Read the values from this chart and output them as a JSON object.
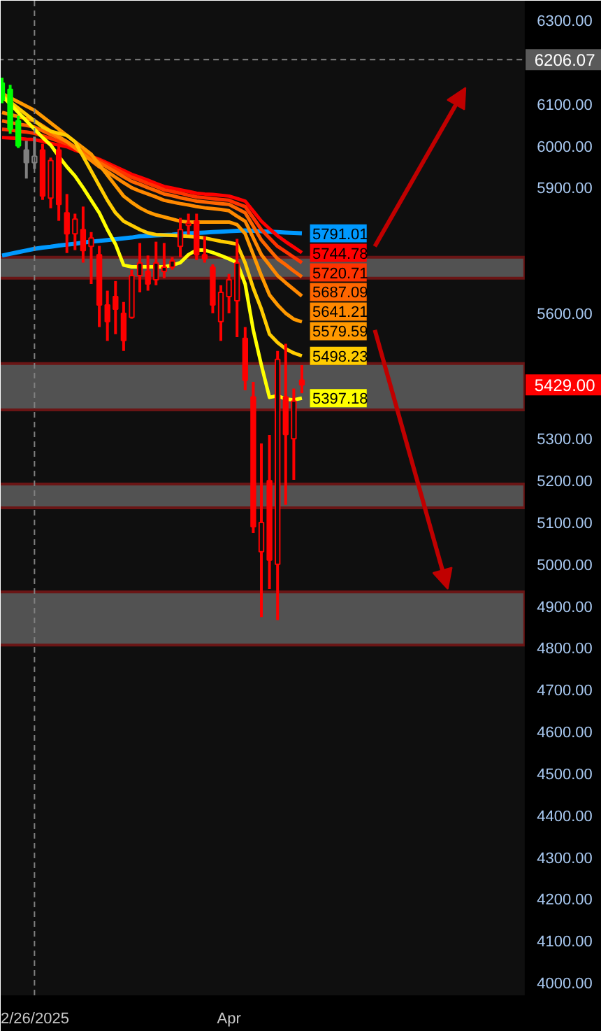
{
  "chart_data": {
    "type": "candlestick",
    "categories": [
      null,
      null,
      null,
      null,
      "2/26/2025",
      null,
      null,
      null,
      null,
      null,
      null,
      null,
      null,
      null,
      null,
      null,
      null,
      null,
      null,
      null,
      null,
      null,
      null,
      null,
      null,
      null,
      null,
      null,
      "Apr",
      null,
      null,
      null,
      null,
      null,
      null,
      null,
      null,
      null
    ],
    "ohlc": [
      [
        6150,
        6163,
        6102,
        6110
      ],
      [
        6135,
        6146,
        6029,
        6040
      ],
      [
        6060,
        6072,
        5995,
        6000
      ],
      [
        5990,
        6012,
        5922,
        5960
      ],
      [
        5960,
        6022,
        5945,
        5975
      ],
      [
        5990,
        6005,
        5871,
        5880
      ],
      [
        5875,
        5972,
        5851,
        5965
      ],
      [
        5990,
        6005,
        5821,
        5860
      ],
      [
        5840,
        5885,
        5744,
        5790
      ],
      [
        5790,
        5838,
        5751,
        5825
      ],
      [
        5800,
        5855,
        5721,
        5750
      ],
      [
        5760,
        5794,
        5670,
        5780
      ],
      [
        5740,
        5761,
        5567,
        5620
      ],
      [
        5620,
        5654,
        5534,
        5580
      ],
      [
        5640,
        5677,
        5550,
        5610
      ],
      [
        5600,
        5627,
        5510,
        5535
      ],
      [
        5590,
        5704,
        5587,
        5690
      ],
      [
        5690,
        5768,
        5650,
        5720
      ],
      [
        5700,
        5738,
        5654,
        5670
      ],
      [
        5680,
        5771,
        5667,
        5720
      ],
      [
        5700,
        5768,
        5684,
        5710
      ],
      [
        5710,
        5734,
        5704,
        5725
      ],
      [
        5760,
        5828,
        5734,
        5800
      ],
      [
        5810,
        5838,
        5788,
        5815
      ],
      [
        5820,
        5838,
        5727,
        5740
      ],
      [
        5740,
        5784,
        5721,
        5730
      ],
      [
        5710,
        5717,
        5600,
        5620
      ],
      [
        5580,
        5667,
        5534,
        5650
      ],
      [
        5640,
        5694,
        5600,
        5680
      ],
      [
        5630,
        5778,
        5543,
        5720
      ],
      [
        5540,
        5567,
        5416,
        5440
      ],
      [
        5400,
        5436,
        5075,
        5090
      ],
      [
        5030,
        5289,
        4874,
        5100
      ],
      [
        5200,
        5309,
        4941,
        5010
      ],
      [
        5000,
        5510,
        4867,
        5490
      ],
      [
        5400,
        5527,
        5142,
        5310
      ],
      [
        5300,
        5420,
        5202,
        5390
      ],
      [
        5440,
        5476,
        5409,
        5429
      ]
    ],
    "colors": [
      "#00ff00",
      "#00ff00",
      "#00ff00",
      "#808080",
      "#808080",
      "#ff0000",
      "#ff0000",
      "#ff0000",
      "#ff0000",
      "#ff0000",
      "#ff0000",
      "#ff0000",
      "#ff0000",
      "#ff0000",
      "#ff0000",
      "#ff0000",
      "#ff0000",
      "#ff0000",
      "#ff0000",
      "#ff0000",
      "#ff0000",
      "#ff0000",
      "#ff0000",
      "#ff0000",
      "#ff0000",
      "#ff0000",
      "#ff0000",
      "#ff0000",
      "#ff0000",
      "#ff0000",
      "#ff0000",
      "#ff0000",
      "#ff0000",
      "#ff0000",
      "#ff0000",
      "#ff0000",
      "#ff0000",
      "#ff0000"
    ],
    "series": [
      {
        "type": "line",
        "color": "#0099ff",
        "values": [
          5738,
          5742,
          5746,
          5750,
          5754,
          5757,
          5759,
          5762,
          5764,
          5766,
          5769,
          5771,
          5773,
          5775,
          5777,
          5779,
          5781,
          5784,
          5785,
          5786,
          5787,
          5788,
          5790,
          5791,
          5792,
          5793,
          5794,
          5795,
          5796,
          5797,
          5798,
          5797,
          5796,
          5795,
          5794,
          5793,
          5792,
          5791.01
        ],
        "value_labels": [
          null,
          null,
          null,
          null,
          null,
          null,
          null,
          null,
          null,
          null,
          null,
          null,
          null,
          null,
          null,
          null,
          null,
          null,
          null,
          null,
          null,
          null,
          null,
          null,
          null,
          null,
          null,
          null,
          null,
          null,
          null,
          null,
          null,
          null,
          null,
          null,
          null,
          "5791.01"
        ]
      },
      {
        "type": "line",
        "color": "#ff0000",
        "values": [
          6020,
          6019,
          6018,
          6016,
          6015,
          6011,
          6006,
          6002,
          5998,
          5990,
          5983,
          5975,
          5968,
          5959,
          5950,
          5941,
          5932,
          5925,
          5918,
          5910,
          5903,
          5899,
          5895,
          5891,
          5887,
          5885,
          5884,
          5882,
          5880,
          5874,
          5868,
          5844,
          5820,
          5802,
          5785,
          5771,
          5758,
          5744.78
        ],
        "value_labels": [
          null,
          null,
          null,
          null,
          null,
          null,
          null,
          null,
          null,
          null,
          null,
          null,
          null,
          null,
          null,
          null,
          null,
          null,
          null,
          null,
          null,
          null,
          null,
          null,
          null,
          null,
          null,
          null,
          null,
          null,
          null,
          null,
          null,
          null,
          null,
          null,
          null,
          "5744.78"
        ]
      },
      {
        "type": "line",
        "color": "#ff3300",
        "values": [
          6040,
          6038,
          6035,
          6033,
          6030,
          6024,
          6018,
          6011,
          6005,
          5995,
          5985,
          5975,
          5965,
          5955,
          5945,
          5935,
          5925,
          5918,
          5910,
          5903,
          5895,
          5891,
          5887,
          5882,
          5878,
          5876,
          5874,
          5872,
          5870,
          5862,
          5855,
          5828,
          5800,
          5780,
          5760,
          5747,
          5734,
          5720.71
        ],
        "value_labels": [
          null,
          null,
          null,
          null,
          null,
          null,
          null,
          null,
          null,
          null,
          null,
          null,
          null,
          null,
          null,
          null,
          null,
          null,
          null,
          null,
          null,
          null,
          null,
          null,
          null,
          null,
          null,
          null,
          null,
          null,
          null,
          null,
          null,
          null,
          null,
          null,
          null,
          "5720.71"
        ]
      },
      {
        "type": "line",
        "color": "#ff6600",
        "values": [
          6060,
          6056,
          6052,
          6049,
          6045,
          6036,
          6027,
          6019,
          6010,
          5997,
          5985,
          5972,
          5960,
          5949,
          5938,
          5926,
          5915,
          5908,
          5900,
          5893,
          5885,
          5881,
          5876,
          5872,
          5868,
          5866,
          5864,
          5862,
          5860,
          5850,
          5840,
          5808,
          5775,
          5752,
          5730,
          5716,
          5701,
          5687.09
        ],
        "value_labels": [
          null,
          null,
          null,
          null,
          null,
          null,
          null,
          null,
          null,
          null,
          null,
          null,
          null,
          null,
          null,
          null,
          null,
          null,
          null,
          null,
          null,
          null,
          null,
          null,
          null,
          null,
          null,
          null,
          null,
          null,
          null,
          null,
          null,
          null,
          null,
          null,
          null,
          "5687.09"
        ]
      },
      {
        "type": "line",
        "color": "#ff8800",
        "values": [
          6080,
          6075,
          6070,
          6065,
          6060,
          6048,
          6035,
          6022,
          6010,
          5995,
          5980,
          5965,
          5950,
          5938,
          5925,
          5912,
          5900,
          5892,
          5885,
          5878,
          5870,
          5866,
          5862,
          5859,
          5855,
          5852,
          5850,
          5848,
          5845,
          5832,
          5820,
          5780,
          5740,
          5715,
          5690,
          5673,
          5657,
          5641.21
        ],
        "value_labels": [
          null,
          null,
          null,
          null,
          null,
          null,
          null,
          null,
          null,
          null,
          null,
          null,
          null,
          null,
          null,
          null,
          null,
          null,
          null,
          null,
          null,
          null,
          null,
          null,
          null,
          null,
          null,
          null,
          null,
          null,
          null,
          null,
          null,
          null,
          null,
          null,
          null,
          "5641.21"
        ]
      },
      {
        "type": "line",
        "color": "#ff9900",
        "values": [
          6125,
          6115,
          6105,
          6095,
          6085,
          6070,
          6055,
          6040,
          6025,
          6010,
          5995,
          5980,
          5955,
          5930,
          5905,
          5880,
          5865,
          5852,
          5842,
          5835,
          5830,
          5825,
          5820,
          5818,
          5818,
          5818,
          5818,
          5818,
          5818,
          5812,
          5790,
          5740,
          5690,
          5644,
          5620,
          5600,
          5586,
          5579.59
        ],
        "value_labels": [
          null,
          null,
          null,
          null,
          null,
          null,
          null,
          null,
          null,
          null,
          null,
          null,
          null,
          null,
          null,
          null,
          null,
          null,
          null,
          null,
          null,
          null,
          null,
          null,
          null,
          null,
          null,
          null,
          null,
          null,
          null,
          null,
          null,
          null,
          null,
          null,
          null,
          "5579.59"
        ]
      },
      {
        "type": "line",
        "color": "#ffcc00",
        "values": [
          6120,
          6105,
          6090,
          6075,
          6060,
          6045,
          6035,
          6030,
          6025,
          6010,
          5975,
          5940,
          5905,
          5870,
          5840,
          5820,
          5810,
          5800,
          5792,
          5788,
          5787,
          5786,
          5785,
          5784,
          5782,
          5780,
          5776,
          5772,
          5769,
          5765,
          5720,
          5660,
          5610,
          5550,
          5530,
          5515,
          5505,
          5498.23
        ],
        "value_labels": [
          null,
          null,
          null,
          null,
          null,
          null,
          null,
          null,
          null,
          null,
          null,
          null,
          null,
          null,
          null,
          null,
          null,
          null,
          null,
          null,
          null,
          null,
          null,
          null,
          null,
          null,
          null,
          null,
          null,
          null,
          null,
          null,
          null,
          null,
          null,
          null,
          null,
          "5498.23"
        ]
      },
      {
        "type": "line",
        "color": "#ffff00",
        "values": [
          6119,
          6100,
          6080,
          6060,
          6040,
          6020,
          6002,
          5975,
          5950,
          5928,
          5900,
          5870,
          5840,
          5800,
          5765,
          5715,
          5711,
          5711,
          5711,
          5711,
          5711,
          5715,
          5721,
          5740,
          5751,
          5751,
          5745,
          5738,
          5730,
          5721,
          5670,
          5560,
          5476,
          5399,
          5403,
          5395,
          5393,
          5397.18
        ],
        "value_labels": [
          null,
          null,
          null,
          null,
          null,
          null,
          null,
          null,
          null,
          null,
          null,
          null,
          null,
          null,
          null,
          null,
          null,
          null,
          null,
          null,
          null,
          null,
          null,
          null,
          null,
          null,
          null,
          null,
          null,
          null,
          null,
          null,
          null,
          null,
          null,
          null,
          null,
          "5397.18"
        ]
      }
    ],
    "ylim": [
      3970,
      6347
    ],
    "yticks": [
      {
        "value": 4000,
        "label": "4000.00"
      },
      {
        "value": 4100,
        "label": "4100.00"
      },
      {
        "value": 4200,
        "label": "4200.00"
      },
      {
        "value": 4300,
        "label": "4300.00"
      },
      {
        "value": 4400,
        "label": "4400.00"
      },
      {
        "value": 4500,
        "label": "4500.00"
      },
      {
        "value": 4600,
        "label": "4600.00"
      },
      {
        "value": 4700,
        "label": "4700.00"
      },
      {
        "value": 4800,
        "label": "4800.00"
      },
      {
        "value": 4900,
        "label": "4900.00"
      },
      {
        "value": 5000,
        "label": "5000.00"
      },
      {
        "value": 5100,
        "label": "5100.00"
      },
      {
        "value": 5200,
        "label": "5200.00"
      },
      {
        "value": 5300,
        "label": "5300.00"
      },
      {
        "value": 5600,
        "label": "5600.00"
      },
      {
        "value": 5900,
        "label": "5900.00"
      },
      {
        "value": 6000,
        "label": "6000.00"
      },
      {
        "value": 6100,
        "label": "6100.00"
      },
      {
        "value": 6300,
        "label": "6300.00"
      }
    ],
    "ref_lines": [
      {
        "axis": "y",
        "value": 6206.07,
        "label": "6206.07",
        "line_style": "dashed",
        "color": "#808080"
      },
      {
        "axis": "x",
        "value": "2/26/2025",
        "line_style": "dashed",
        "color": "#808080"
      }
    ],
    "bands": [
      {
        "axis": "y",
        "from": 5684,
        "to": 5734,
        "color": "#d0d0d0"
      },
      {
        "axis": "y",
        "from": 5369,
        "to": 5480,
        "color": "#d0d0d0"
      },
      {
        "axis": "y",
        "from": 5135,
        "to": 5192,
        "color": "#d0d0d0"
      },
      {
        "axis": "y",
        "from": 4807,
        "to": 4934,
        "color": "#d0d0d0"
      }
    ],
    "annotations": [
      "5429.00"
    ]
  }
}
